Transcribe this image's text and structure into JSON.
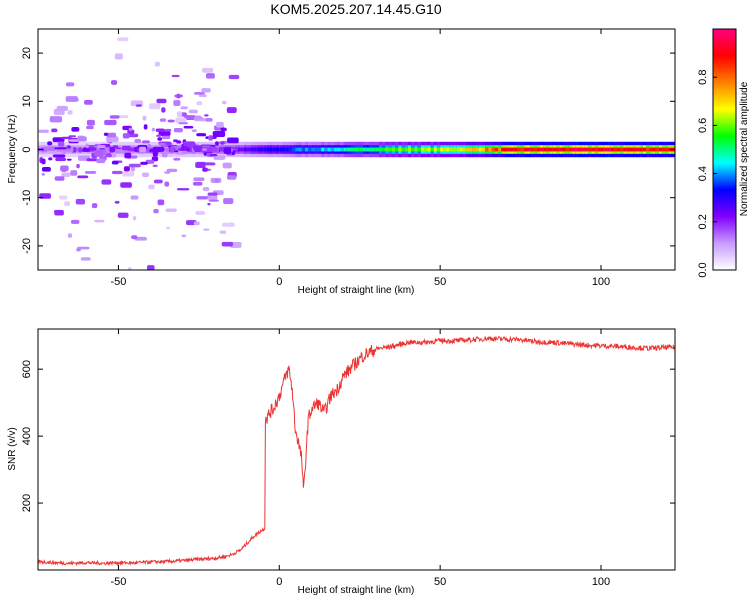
{
  "title": "KOM5.2025.207.14.45.G10",
  "chart_data": [
    {
      "type": "heatmap",
      "xlabel": "Height of straight line (km)",
      "ylabel": "Frequency (Hz)",
      "xlim": [
        -75,
        123
      ],
      "ylim": [
        -25,
        25
      ],
      "x_ticks": [
        -50,
        0,
        50,
        100
      ],
      "y_ticks": [
        -20,
        -10,
        0,
        10,
        20
      ],
      "colorbar": {
        "label": "Normalized spectral amplitude",
        "range": [
          0.0,
          1.0
        ],
        "ticks": [
          "0.0",
          "0.2",
          "0.4",
          "0.6",
          "0.8"
        ],
        "colors": [
          "#ffffff",
          "#c89bff",
          "#8000ff",
          "#0000ff",
          "#00ffff",
          "#00ff00",
          "#ffff00",
          "#ff8000",
          "#ff0000",
          "#ff0080"
        ]
      },
      "grid": false,
      "ridge": {
        "frequency_hz": 0,
        "x": [
          -75,
          -60,
          -45,
          -30,
          -20,
          -15,
          -10,
          -5,
          0,
          5,
          10,
          20,
          30,
          40,
          50,
          60,
          70,
          80,
          90,
          100,
          110,
          123
        ],
        "amplitude": [
          0.15,
          0.14,
          0.16,
          0.18,
          0.2,
          0.22,
          0.25,
          0.3,
          0.32,
          0.38,
          0.4,
          0.45,
          0.55,
          0.6,
          0.62,
          0.7,
          0.85,
          0.9,
          0.9,
          0.92,
          0.9,
          0.9
        ]
      },
      "scattered_band": {
        "x_range": [
          -75,
          -15
        ],
        "frequency_range_hz": [
          -25,
          25
        ],
        "amplitude_range": [
          0.05,
          0.2
        ]
      }
    },
    {
      "type": "line",
      "xlabel": "Height of straight line (km)",
      "ylabel": "SNR (v/v)",
      "xlim": [
        -75,
        123
      ],
      "ylim": [
        0,
        720
      ],
      "x_ticks": [
        -50,
        0,
        50,
        100
      ],
      "y_ticks": [
        200,
        400,
        600
      ],
      "grid": false,
      "series": [
        {
          "color": "#ee3333",
          "x": [
            -75,
            -70,
            -65,
            -60,
            -55,
            -50,
            -45,
            -40,
            -35,
            -30,
            -25,
            -20,
            -17,
            -15,
            -12,
            -10,
            -8,
            -6,
            -4.5,
            -3.8,
            -3,
            -2,
            -1,
            0,
            1,
            2,
            3,
            4,
            5,
            6,
            7,
            7.5,
            8,
            9,
            10,
            12,
            14,
            16,
            18,
            20,
            22,
            24,
            26,
            28,
            30,
            33,
            36,
            40,
            45,
            50,
            55,
            60,
            65,
            70,
            75,
            80,
            85,
            90,
            95,
            100,
            105,
            110,
            115,
            120,
            123
          ],
          "y": [
            25,
            22,
            20,
            22,
            20,
            22,
            21,
            24,
            25,
            28,
            32,
            35,
            40,
            45,
            60,
            80,
            100,
            115,
            125,
            455,
            470,
            480,
            500,
            520,
            550,
            580,
            600,
            540,
            420,
            380,
            330,
            230,
            300,
            450,
            480,
            500,
            470,
            520,
            540,
            580,
            600,
            620,
            640,
            650,
            660,
            665,
            670,
            680,
            680,
            685,
            685,
            688,
            692,
            690,
            688,
            682,
            680,
            676,
            672,
            670,
            668,
            665,
            662,
            665,
            665
          ]
        }
      ]
    }
  ]
}
